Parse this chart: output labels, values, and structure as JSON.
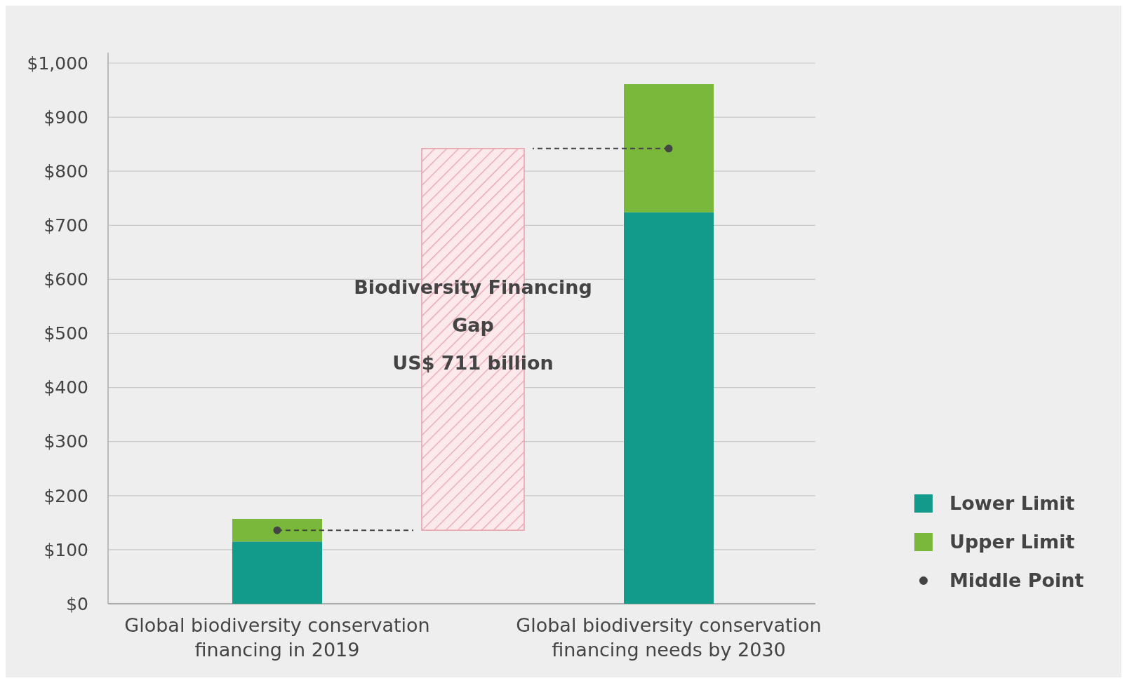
{
  "chart_data": {
    "type": "bar",
    "stacked": true,
    "categories": [
      "Global biodiversity conservation financing in 2019",
      null,
      "Global biodiversity conservation financing needs by 2030"
    ],
    "series": [
      {
        "name": "Lower Limit",
        "color": "#129a8a",
        "values": [
          115,
          null,
          724
        ]
      },
      {
        "name": "Upper Limit",
        "color": "#7ab83c",
        "values": [
          42,
          null,
          237
        ]
      },
      {
        "color": "#e8a0ac",
        "values": [
          null,
          706,
          null
        ],
        "base": [
          null,
          136,
          null
        ]
      },
      {
        "name": "Middle Point",
        "type": "scatter",
        "color": "#444444",
        "x": [
          "Global biodiversity conservation financing in 2019",
          "Global biodiversity conservation financing needs by 2030"
        ],
        "values": [
          136,
          842
        ]
      }
    ],
    "ylim": [
      0,
      1000
    ],
    "yticks": [
      {
        "value": 0,
        "label": "$0"
      },
      {
        "value": 100,
        "label": "$100"
      },
      {
        "value": 200,
        "label": "$200"
      },
      {
        "value": 300,
        "label": "$300"
      },
      {
        "value": 400,
        "label": "$400"
      },
      {
        "value": 500,
        "label": "$500"
      },
      {
        "value": 600,
        "label": "$600"
      },
      {
        "value": 700,
        "label": "$700"
      },
      {
        "value": 800,
        "label": "$800"
      },
      {
        "value": 900,
        "label": "$900"
      },
      {
        "value": 1000,
        "label": "$1,000"
      }
    ],
    "grid": "y",
    "legend": "right",
    "marker": "circle",
    "annotations": [
      "Biodiversity Financing\nGap\nUS$ 711 billion"
    ]
  }
}
